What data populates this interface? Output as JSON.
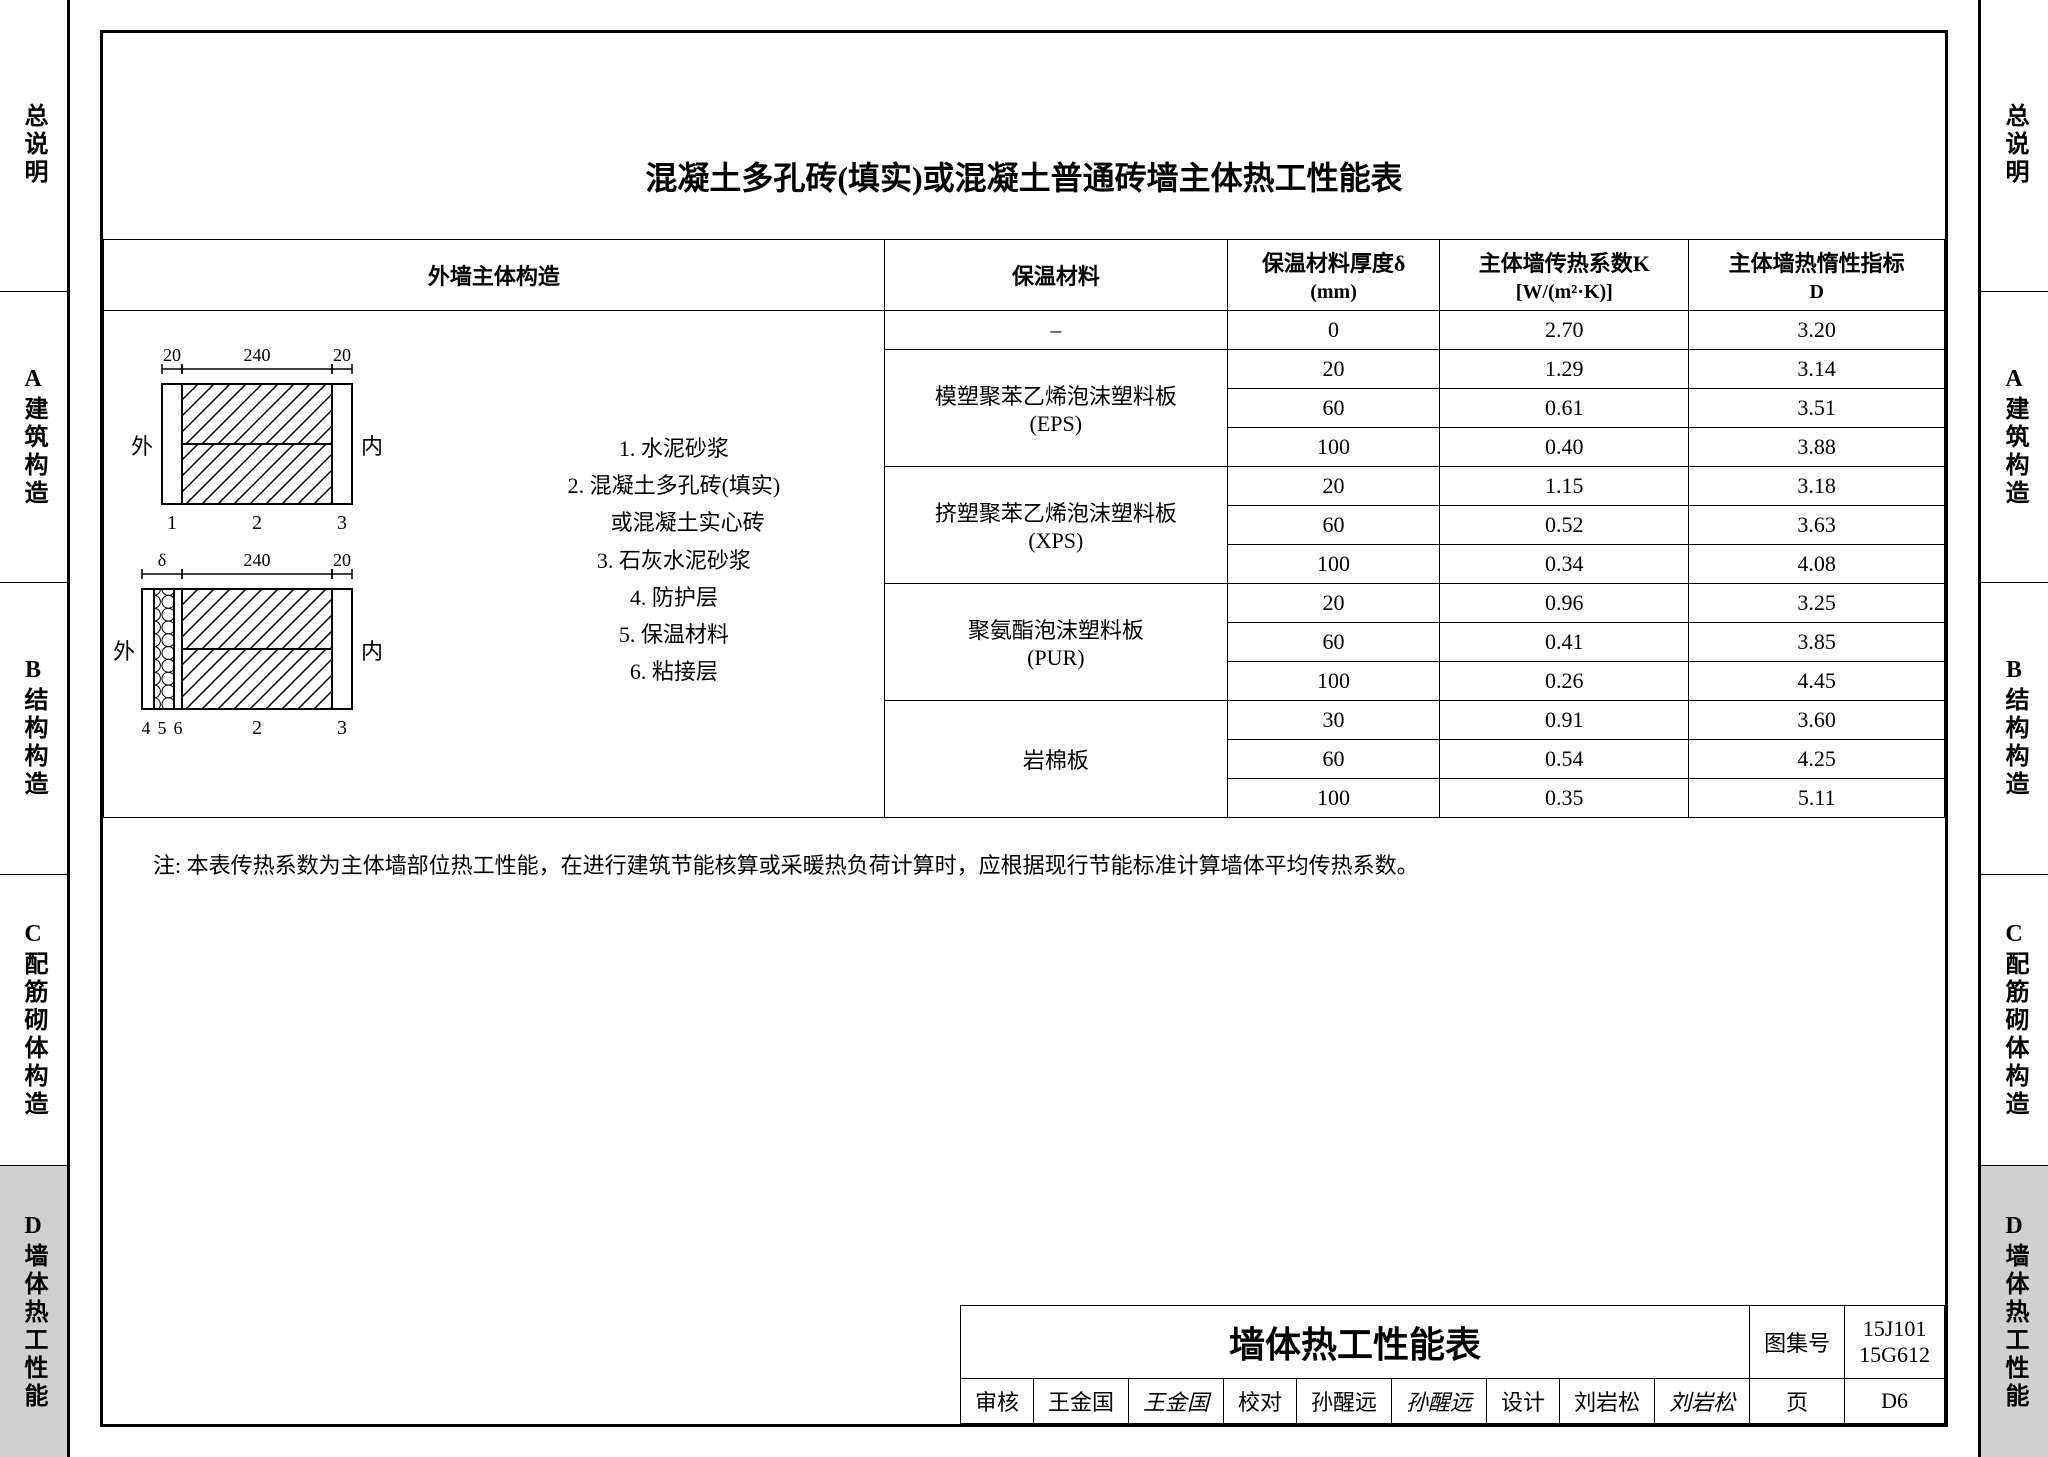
{
  "sidebar": {
    "tabs": [
      {
        "code": "",
        "label": "总说明",
        "active": false
      },
      {
        "code": "A",
        "label": "建筑构造",
        "active": false
      },
      {
        "code": "B",
        "label": "结构构造",
        "active": false
      },
      {
        "code": "C",
        "label": "配筋砌体构造",
        "active": false
      },
      {
        "code": "D",
        "label": "墙体热工性能",
        "active": true
      }
    ]
  },
  "title": "混凝土多孔砖(填实)或混凝土普通砖墙主体热工性能表",
  "headers": {
    "col1": "外墙主体构造",
    "col2": "保温材料",
    "col3_line1": "保温材料厚度δ",
    "col3_line2": "(mm)",
    "col4_line1": "主体墙传热系数K",
    "col4_line2": "[W/(m²·K)]",
    "col5_line1": "主体墙热惰性指标",
    "col5_line2": "D"
  },
  "diagram": {
    "top": {
      "d1": "20",
      "d2": "240",
      "d3": "20",
      "left": "外",
      "right": "内",
      "b1": "1",
      "b2": "2",
      "b3": "3"
    },
    "bot": {
      "d1": "δ",
      "d2": "240",
      "d3": "20",
      "left": "外",
      "right": "内",
      "b1": "4",
      "b2": "5",
      "b3": "6",
      "b4": "2",
      "b5": "3"
    }
  },
  "legend": [
    "1. 水泥砂浆",
    "2. 混凝土多孔砖(填实)",
    "　 或混凝土实心砖",
    "3. 石灰水泥砂浆",
    "4. 防护层",
    "5. 保温材料",
    "6. 粘接层"
  ],
  "rows": [
    {
      "material": "–",
      "t": "0",
      "k": "2.70",
      "d": "3.20"
    },
    {
      "material": "模塑聚苯乙烯泡沫塑料板\n(EPS)",
      "rowspan": 3,
      "t": "20",
      "k": "1.29",
      "d": "3.14"
    },
    {
      "t": "60",
      "k": "0.61",
      "d": "3.51"
    },
    {
      "t": "100",
      "k": "0.40",
      "d": "3.88"
    },
    {
      "material": "挤塑聚苯乙烯泡沫塑料板\n(XPS)",
      "rowspan": 3,
      "t": "20",
      "k": "1.15",
      "d": "3.18"
    },
    {
      "t": "60",
      "k": "0.52",
      "d": "3.63"
    },
    {
      "t": "100",
      "k": "0.34",
      "d": "4.08"
    },
    {
      "material": "聚氨酯泡沫塑料板\n(PUR)",
      "rowspan": 3,
      "t": "20",
      "k": "0.96",
      "d": "3.25"
    },
    {
      "t": "60",
      "k": "0.41",
      "d": "3.85"
    },
    {
      "t": "100",
      "k": "0.26",
      "d": "4.45"
    },
    {
      "material": "岩棉板",
      "rowspan": 3,
      "t": "30",
      "k": "0.91",
      "d": "3.60"
    },
    {
      "t": "60",
      "k": "0.54",
      "d": "4.25"
    },
    {
      "t": "100",
      "k": "0.35",
      "d": "5.11"
    }
  ],
  "note_label": "注:",
  "note": "本表传热系数为主体墙部位热工性能，在进行建筑节能核算或采暖热负荷计算时，应根据现行节能标准计算墙体平均传热系数。",
  "titleblock": {
    "main": "墙体热工性能表",
    "atlas_label": "图集号",
    "atlas1": "15J101",
    "atlas2": "15G612",
    "audit_label": "审核",
    "audit_name": "王金国",
    "audit_sig": "王金国",
    "check_label": "校对",
    "check_name": "孙醒远",
    "check_sig": "孙醒远",
    "design_label": "设计",
    "design_name": "刘岩松",
    "design_sig": "刘岩松",
    "page_label": "页",
    "page": "D6"
  }
}
